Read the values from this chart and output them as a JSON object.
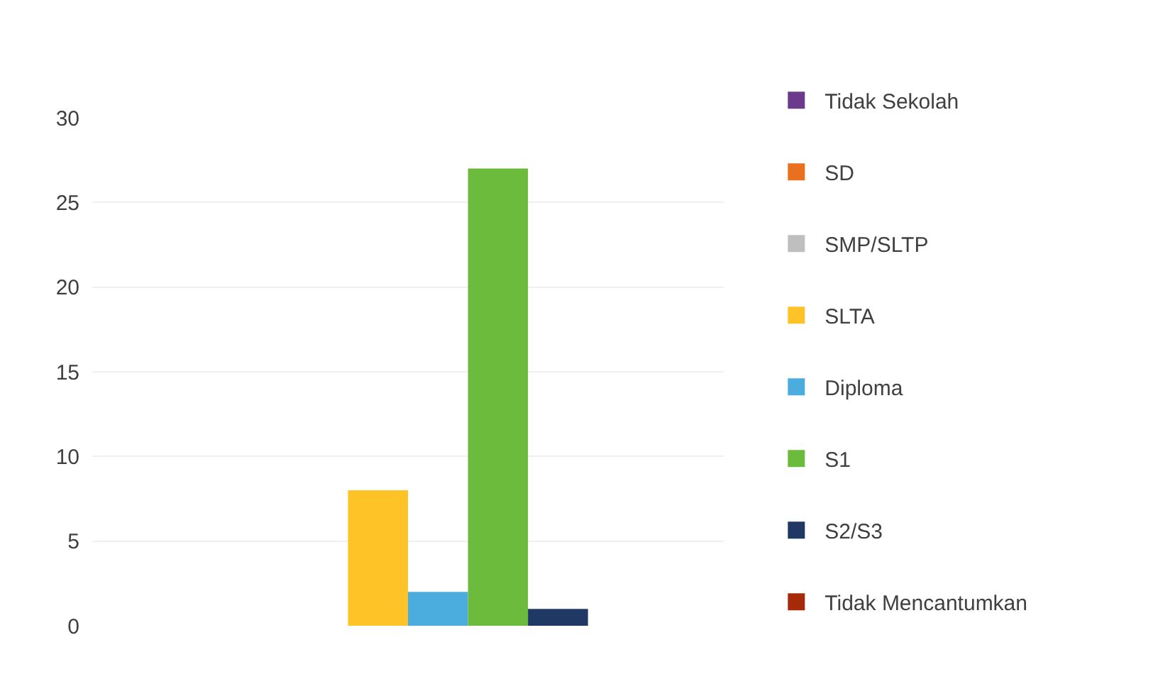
{
  "chart_data": {
    "type": "bar",
    "categories": [
      null
    ],
    "series": [
      {
        "name": "Tidak Sekolah",
        "color": "#6b3a8c",
        "values": [
          0
        ]
      },
      {
        "name": "SD",
        "color": "#e8701f",
        "values": [
          0
        ]
      },
      {
        "name": "SMP/SLTP",
        "color": "#bfbfbf",
        "values": [
          0
        ]
      },
      {
        "name": "SLTA",
        "color": "#fdc327",
        "values": [
          8
        ]
      },
      {
        "name": "Diploma",
        "color": "#4bacde",
        "values": [
          2
        ]
      },
      {
        "name": "S1",
        "color": "#6cbb3c",
        "values": [
          27
        ]
      },
      {
        "name": "S2/S3",
        "color": "#1f3864",
        "values": [
          1
        ]
      },
      {
        "name": "Tidak Mencantumkan",
        "color": "#a52a0a",
        "values": [
          0
        ]
      }
    ],
    "ylim": [
      0,
      30
    ],
    "yticks": [
      0,
      5,
      10,
      15,
      20,
      25,
      30
    ],
    "tick_labels": "y",
    "legend": "right",
    "grid": "y"
  }
}
